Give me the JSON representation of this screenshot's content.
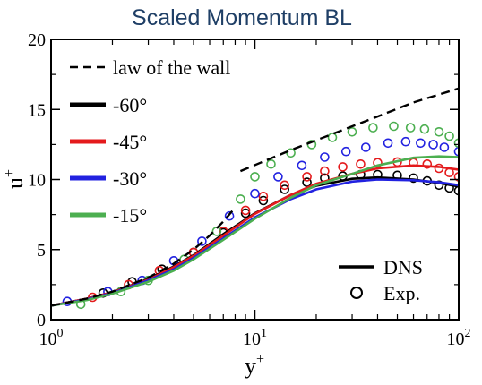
{
  "chart_data": {
    "type": "line",
    "title": "Scaled Momentum BL",
    "xlabel": "y",
    "xlabel_sup": "+",
    "ylabel": "u",
    "ylabel_sup": "+",
    "x_scale": "log",
    "xlim": [
      1,
      100
    ],
    "ylim": [
      0,
      20
    ],
    "x_ticks": [
      {
        "value": 1,
        "base": "10",
        "exp": "0"
      },
      {
        "value": 10,
        "base": "10",
        "exp": "1"
      },
      {
        "value": 100,
        "base": "10",
        "exp": "2"
      }
    ],
    "y_ticks": [
      0,
      5,
      10,
      15,
      20
    ],
    "grid": false,
    "legend_placement": "top-left",
    "legend": [
      {
        "label": "law of the wall",
        "color": "#000000",
        "style": "dashed"
      },
      {
        "label": "-60°",
        "color": "#000000",
        "style": "solid"
      },
      {
        "label": "-45°",
        "color": "#e41a1c",
        "style": "solid"
      },
      {
        "label": "-30°",
        "color": "#2222e0",
        "style": "solid"
      },
      {
        "label": "-15°",
        "color": "#4caf50",
        "style": "solid"
      }
    ],
    "legend2_placement": "bottom-right",
    "legend2": [
      {
        "label": "DNS",
        "marker": "line"
      },
      {
        "label": "Exp.",
        "marker": "circle"
      }
    ],
    "law_of_wall": {
      "viscous": {
        "x": [
          1,
          1.5,
          2,
          3,
          4,
          5,
          6,
          7,
          8
        ],
        "y": [
          1,
          1.5,
          2,
          3,
          4,
          5,
          6,
          7,
          8
        ]
      },
      "log": {
        "x": [
          8.5,
          15,
          25,
          40,
          60,
          100
        ],
        "y": [
          10.6,
          12.1,
          13.35,
          14.5,
          15.5,
          16.5
        ]
      }
    },
    "series": [
      {
        "name": "-60°",
        "color": "#000000",
        "dns": {
          "x": [
            1,
            1.5,
            2,
            3,
            4,
            5,
            7,
            10,
            15,
            20,
            30,
            40,
            60,
            80,
            100
          ],
          "y": [
            1,
            1.5,
            1.95,
            2.9,
            3.8,
            4.6,
            6.1,
            7.6,
            8.9,
            9.55,
            10.05,
            10.15,
            10.0,
            9.75,
            9.5
          ]
        },
        "exp": {
          "x": [
            1.8,
            2.5,
            3.5,
            5,
            7,
            9,
            11,
            14,
            18,
            22,
            27,
            33,
            40,
            50,
            60,
            70,
            80,
            90,
            100
          ],
          "y": [
            1.9,
            2.7,
            3.6,
            4.8,
            6.2,
            7.6,
            8.5,
            9.3,
            9.8,
            10.1,
            10.25,
            10.35,
            10.35,
            10.3,
            10.1,
            9.9,
            9.6,
            9.4,
            9.2
          ]
        }
      },
      {
        "name": "-45°",
        "color": "#e41a1c",
        "dns": {
          "x": [
            1,
            1.5,
            2,
            3,
            4,
            5,
            7,
            10,
            15,
            20,
            30,
            40,
            60,
            80,
            100
          ],
          "y": [
            1,
            1.5,
            1.95,
            2.85,
            3.75,
            4.55,
            6.0,
            7.55,
            8.9,
            9.7,
            10.4,
            10.8,
            11.0,
            10.9,
            10.7
          ]
        },
        "exp": {
          "x": [
            1.6,
            2.4,
            3.4,
            5,
            7,
            9,
            11,
            14,
            18,
            22,
            27,
            33,
            40,
            50,
            60,
            70,
            80,
            90,
            100
          ],
          "y": [
            1.6,
            2.5,
            3.5,
            4.8,
            6.3,
            7.8,
            8.8,
            9.6,
            10.2,
            10.6,
            10.9,
            11.1,
            11.2,
            11.25,
            11.2,
            11.1,
            10.8,
            10.5,
            10.2
          ]
        }
      },
      {
        "name": "-30°",
        "color": "#2222e0",
        "dns": {
          "x": [
            1,
            1.5,
            2,
            3,
            4,
            5,
            7,
            10,
            15,
            20,
            30,
            40,
            60,
            80,
            100
          ],
          "y": [
            1,
            1.45,
            1.9,
            2.8,
            3.6,
            4.4,
            5.8,
            7.3,
            8.6,
            9.3,
            9.85,
            10.0,
            9.95,
            9.8,
            9.6
          ]
        },
        "exp": {
          "x": [
            1.2,
            1.9,
            2.8,
            4,
            5.5,
            7.5,
            10,
            13,
            17,
            22,
            28,
            35,
            45,
            55,
            65,
            75,
            85,
            100
          ],
          "y": [
            1.3,
            2.0,
            2.8,
            4.2,
            5.6,
            7.4,
            9.0,
            10.2,
            11.0,
            11.6,
            12.0,
            12.3,
            12.6,
            12.7,
            12.6,
            12.5,
            12.3,
            12.0
          ]
        }
      },
      {
        "name": "-15°",
        "color": "#4caf50",
        "dns": {
          "x": [
            1,
            1.5,
            2,
            3,
            4,
            5,
            7,
            10,
            15,
            20,
            30,
            40,
            60,
            80,
            100
          ],
          "y": [
            1,
            1.4,
            1.85,
            2.7,
            3.5,
            4.3,
            5.7,
            7.2,
            8.7,
            9.6,
            10.4,
            11.0,
            11.55,
            11.65,
            11.6
          ]
        },
        "exp": {
          "x": [
            1.4,
            2.2,
            3.0,
            4.5,
            6.5,
            8.5,
            10,
            12,
            15,
            19,
            24,
            30,
            38,
            48,
            58,
            68,
            80,
            90,
            100
          ],
          "y": [
            1.1,
            2.0,
            2.8,
            4.3,
            6.3,
            8.6,
            10.2,
            11.1,
            11.9,
            12.5,
            13.0,
            13.4,
            13.7,
            13.8,
            13.7,
            13.6,
            13.4,
            13.1,
            12.6
          ]
        }
      }
    ]
  }
}
